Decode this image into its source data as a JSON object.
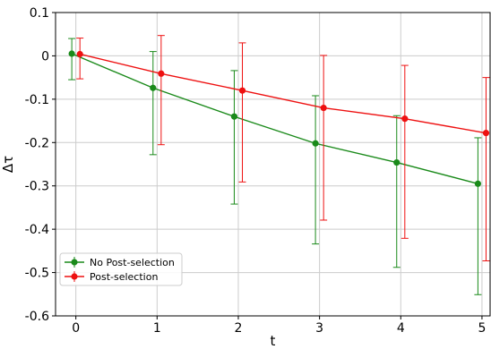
{
  "chart_data": {
    "type": "line",
    "title": "",
    "xlabel": "t",
    "ylabel": "Δτ",
    "xlim": [
      -0.25,
      5.1
    ],
    "ylim": [
      -0.6,
      0.1
    ],
    "x_ticks": [
      0,
      1,
      2,
      3,
      4,
      5
    ],
    "x_tick_labels": [
      "0",
      "1",
      "2",
      "3",
      "4",
      "5"
    ],
    "y_ticks": [
      0.1,
      0,
      -0.1,
      -0.2,
      -0.3,
      -0.4,
      -0.5,
      -0.6
    ],
    "y_tick_labels": [
      "0.1",
      "0",
      "-0.1",
      "-0.2",
      "-0.3",
      "-0.4",
      "-0.5",
      "-0.6"
    ],
    "grid": true,
    "legend_position": "bottom-left",
    "series": [
      {
        "name": "No Post-selection",
        "color": "#1a8a1a",
        "x": [
          -0.05,
          0.95,
          1.95,
          2.95,
          3.95,
          4.95
        ],
        "y": [
          0.005,
          -0.074,
          -0.14,
          -0.202,
          -0.246,
          -0.295
        ],
        "err_low": [
          -0.055,
          -0.228,
          -0.342,
          -0.434,
          -0.488,
          -0.551
        ],
        "err_high": [
          0.04,
          0.01,
          -0.034,
          -0.092,
          -0.138,
          -0.189
        ]
      },
      {
        "name": "Post-selection",
        "color": "#ee1111",
        "x": [
          0.05,
          1.05,
          2.05,
          3.05,
          4.05,
          5.05
        ],
        "y": [
          0.004,
          -0.041,
          -0.08,
          -0.12,
          -0.145,
          -0.178
        ],
        "err_low": [
          -0.053,
          -0.205,
          -0.291,
          -0.379,
          -0.421,
          -0.473
        ],
        "err_high": [
          0.041,
          0.047,
          0.03,
          0.001,
          -0.022,
          -0.05
        ]
      }
    ]
  }
}
